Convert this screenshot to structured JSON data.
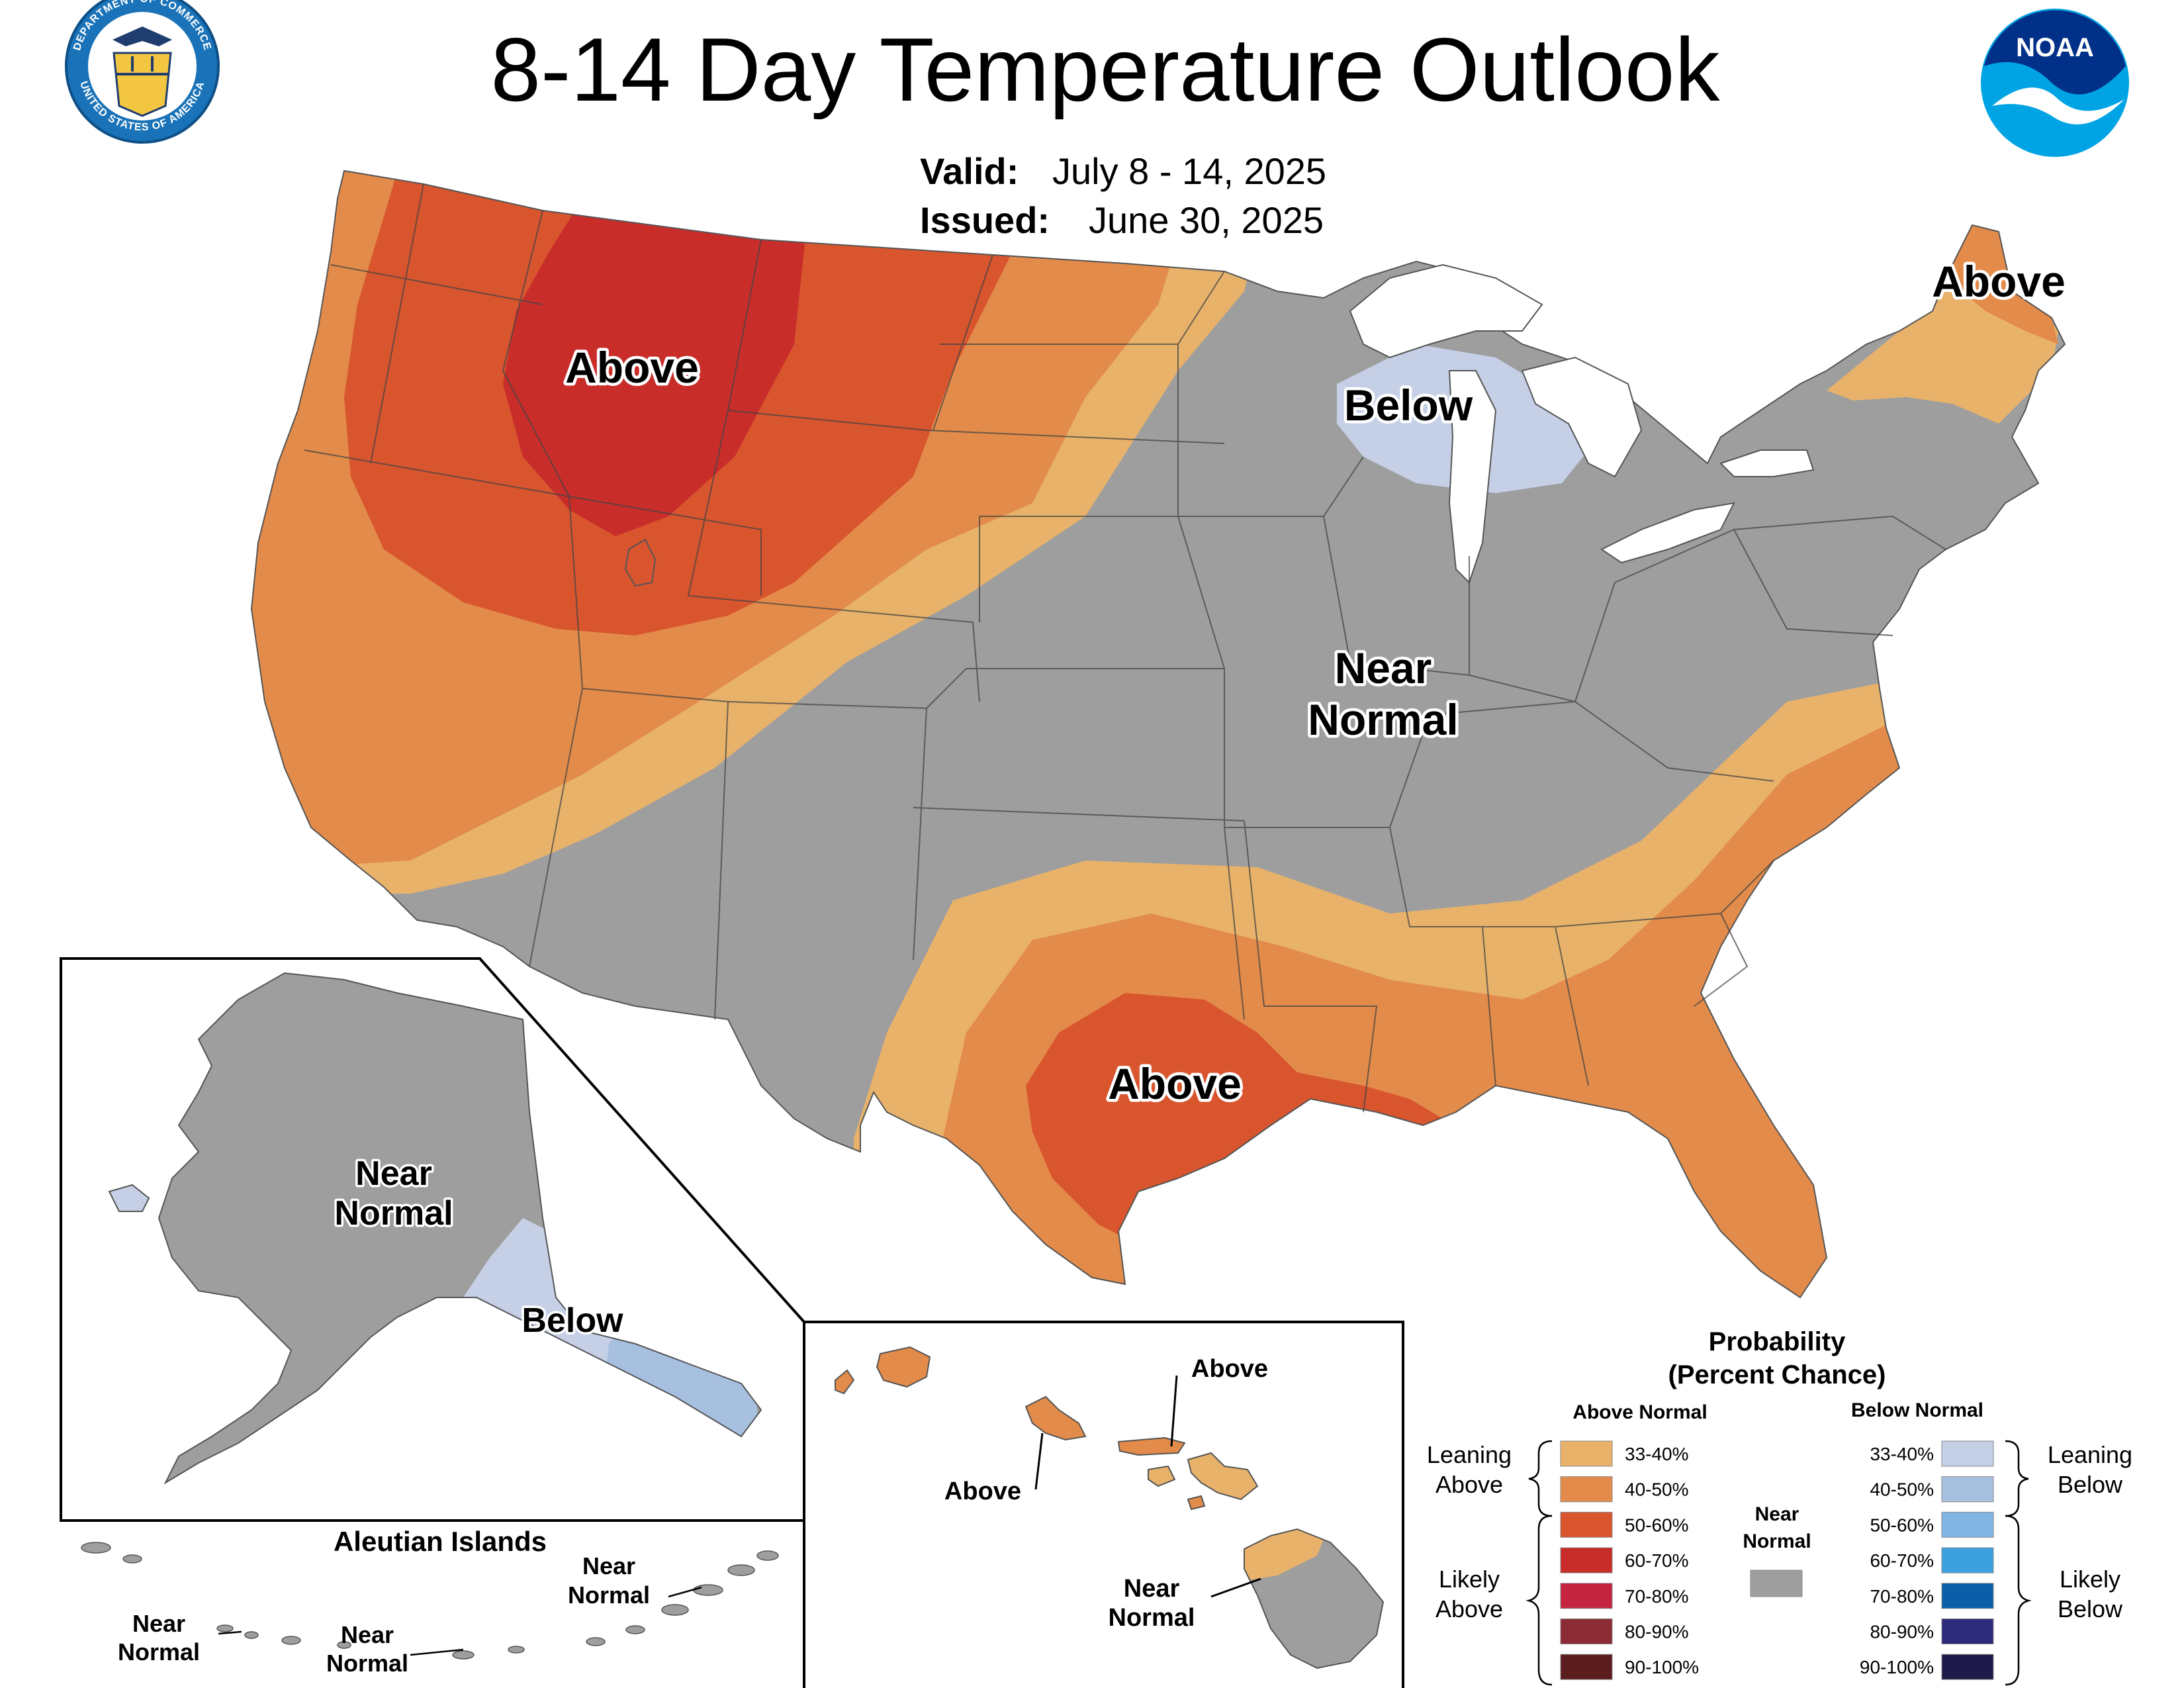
{
  "title": "8-14 Day Temperature Outlook",
  "valid_label": "Valid:",
  "valid_value": "July 8 - 14, 2025",
  "issued_label": "Issued:",
  "issued_value": "June 30, 2025",
  "logos": {
    "doc_ring_top": "DEPARTMENT OF COMMERCE",
    "doc_ring_bottom": "UNITED STATES OF AMERICA",
    "noaa": "NOAA"
  },
  "colors": {
    "above_33_40": "#e8b26b",
    "above_40_50": "#e38b4a",
    "above_50_60": "#d9552e",
    "above_60_70": "#c82d2a",
    "above_70_80": "#c4243f",
    "above_80_90": "#8b2b33",
    "above_90_100": "#5b1d1d",
    "below_33_40": "#c5d0e6",
    "below_40_50": "#a7c0e0",
    "below_50_60": "#81b5e4",
    "below_60_70": "#3da1df",
    "below_70_80": "#0b5fa8",
    "below_80_90": "#2e2b7a",
    "below_90_100": "#1e1b4a",
    "near_normal": "#9e9e9e",
    "lakes": "#ffffff"
  },
  "map_labels": {
    "conus": [
      {
        "id": "nw-above",
        "text": "Above"
      },
      {
        "id": "lakes-below",
        "text": "Below"
      },
      {
        "id": "ne-above",
        "text": "Above"
      },
      {
        "id": "central-near-1",
        "text": "Near"
      },
      {
        "id": "central-near-2",
        "text": "Normal"
      },
      {
        "id": "south-above",
        "text": "Above"
      }
    ],
    "alaska": [
      {
        "id": "ak-near-1",
        "text": "Near"
      },
      {
        "id": "ak-near-2",
        "text": "Normal"
      },
      {
        "id": "ak-below",
        "text": "Below"
      }
    ],
    "aleutian_title": "Aleutian Islands",
    "aleutian": [
      {
        "id": "al-w-1",
        "text": "Near"
      },
      {
        "id": "al-w-2",
        "text": "Normal"
      },
      {
        "id": "al-c-1",
        "text": "Near"
      },
      {
        "id": "al-c-2",
        "text": "Normal"
      },
      {
        "id": "al-e-1",
        "text": "Near"
      },
      {
        "id": "al-e-2",
        "text": "Normal"
      }
    ],
    "hawaii": [
      {
        "id": "hi-above-n",
        "text": "Above"
      },
      {
        "id": "hi-above-w",
        "text": "Above"
      },
      {
        "id": "hi-near-1",
        "text": "Near"
      },
      {
        "id": "hi-near-2",
        "text": "Normal"
      }
    ]
  },
  "legend": {
    "title_1": "Probability",
    "title_2": "(Percent Chance)",
    "above_header": "Above Normal",
    "below_header": "Below Normal",
    "near_1": "Near",
    "near_2": "Normal",
    "leaning_above_1": "Leaning",
    "leaning_above_2": "Above",
    "likely_above_1": "Likely",
    "likely_above_2": "Above",
    "leaning_below_1": "Leaning",
    "leaning_below_2": "Below",
    "likely_below_1": "Likely",
    "likely_below_2": "Below",
    "above_rows": [
      {
        "range": "33-40%",
        "color": "#e8b26b"
      },
      {
        "range": "40-50%",
        "color": "#e38b4a"
      },
      {
        "range": "50-60%",
        "color": "#d9552e"
      },
      {
        "range": "60-70%",
        "color": "#c82d2a"
      },
      {
        "range": "70-80%",
        "color": "#c4243f"
      },
      {
        "range": "80-90%",
        "color": "#8b2b33"
      },
      {
        "range": "90-100%",
        "color": "#5b1d1d"
      }
    ],
    "below_rows": [
      {
        "range": "33-40%",
        "color": "#c5d0e6"
      },
      {
        "range": "40-50%",
        "color": "#a7c0e0"
      },
      {
        "range": "50-60%",
        "color": "#81b5e4"
      },
      {
        "range": "60-70%",
        "color": "#3da1df"
      },
      {
        "range": "70-80%",
        "color": "#0b5fa8"
      },
      {
        "range": "80-90%",
        "color": "#2e2b7a"
      },
      {
        "range": "90-100%",
        "color": "#1e1b4a"
      }
    ]
  }
}
